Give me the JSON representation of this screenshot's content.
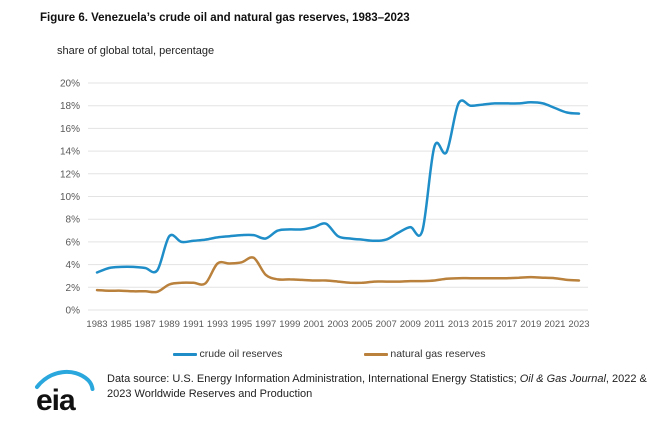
{
  "header": {
    "title": "Figure 6. Venezuela’s crude oil and natural gas reserves, 1983–2023",
    "subtitle": "share of global total, percentage"
  },
  "chart_data": {
    "type": "line",
    "title": "Figure 6. Venezuela’s crude oil and natural gas reserves, 1983–2023",
    "ylabel": "share of global total, percentage",
    "xlabel": "",
    "x": [
      1983,
      1984,
      1985,
      1986,
      1987,
      1988,
      1989,
      1990,
      1991,
      1992,
      1993,
      1994,
      1995,
      1996,
      1997,
      1998,
      1999,
      2000,
      2001,
      2002,
      2003,
      2004,
      2005,
      2006,
      2007,
      2008,
      2009,
      2010,
      2011,
      2012,
      2013,
      2014,
      2015,
      2016,
      2017,
      2018,
      2019,
      2020,
      2021,
      2022,
      2023
    ],
    "series": [
      {
        "name": "crude oil reserves",
        "color": "#1f8ec8",
        "values": [
          3.3,
          3.7,
          3.8,
          3.8,
          3.7,
          3.5,
          6.5,
          6.0,
          6.1,
          6.2,
          6.4,
          6.5,
          6.6,
          6.6,
          6.3,
          7.0,
          7.1,
          7.1,
          7.3,
          7.6,
          6.5,
          6.3,
          6.2,
          6.1,
          6.2,
          6.8,
          7.3,
          7.0,
          14.4,
          13.9,
          18.2,
          18.0,
          18.1,
          18.2,
          18.2,
          18.2,
          18.3,
          18.2,
          17.8,
          17.4,
          17.3
        ]
      },
      {
        "name": "natural gas reserves",
        "color": "#b9813c",
        "values": [
          1.75,
          1.7,
          1.7,
          1.65,
          1.65,
          1.6,
          2.25,
          2.4,
          2.4,
          2.35,
          4.1,
          4.1,
          4.2,
          4.6,
          3.1,
          2.7,
          2.7,
          2.65,
          2.6,
          2.6,
          2.5,
          2.4,
          2.4,
          2.5,
          2.5,
          2.5,
          2.55,
          2.55,
          2.6,
          2.75,
          2.8,
          2.8,
          2.8,
          2.8,
          2.8,
          2.85,
          2.9,
          2.85,
          2.8,
          2.65,
          2.6
        ]
      }
    ],
    "ylim": [
      0,
      20
    ],
    "ytick_step": 2,
    "ytick_suffix": "%",
    "xtick_step": 2,
    "grid": "horizontal",
    "legend_position": "bottom"
  },
  "footer": {
    "logo_text": "eia",
    "source_prefix": "Data source: U.S. Energy Information Administration, International Energy Statistics; ",
    "source_italic": "Oil & Gas Journal",
    "source_suffix": ", 2022 & 2023 Worldwide Reserves and Production"
  }
}
